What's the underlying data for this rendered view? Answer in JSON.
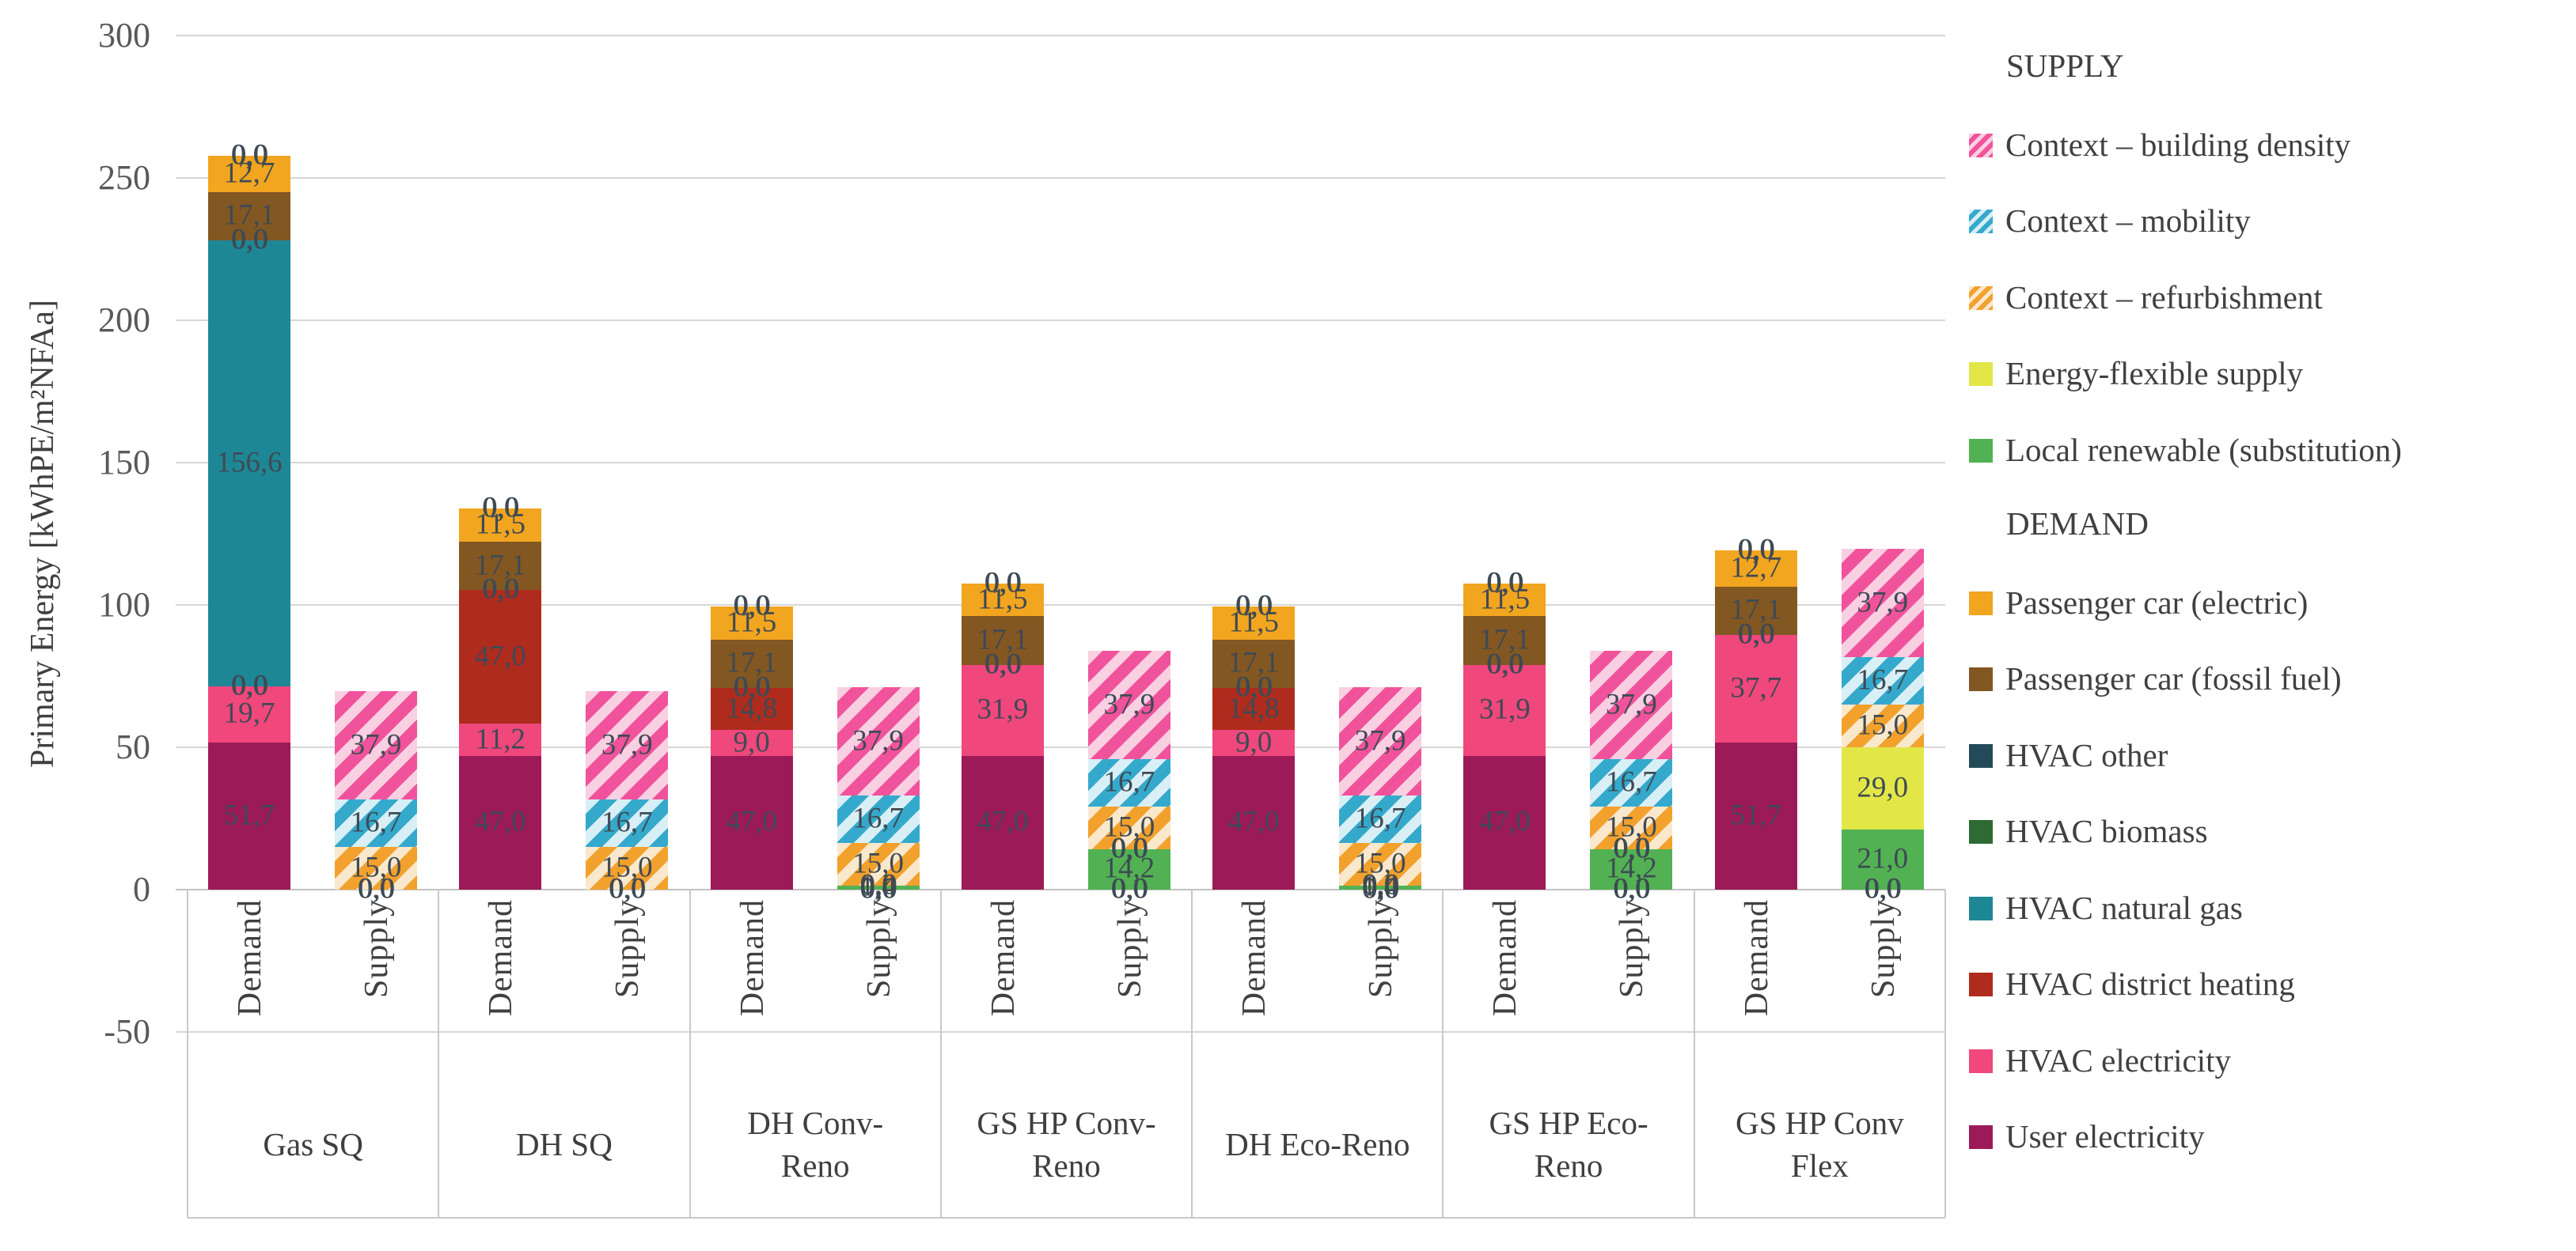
{
  "chart_data": {
    "type": "bar",
    "variant": "grouped-stacked-columns",
    "title": "",
    "ylabel": "Primary Energy [kWhPE/m²NFAa]",
    "y_ticks": [
      300,
      250,
      200,
      150,
      100,
      50,
      0,
      -50
    ],
    "ylim": [
      -50,
      300
    ],
    "grid": true,
    "decimal_separator": ",",
    "column_sublabels": [
      "Demand",
      "Supply"
    ],
    "groups": [
      {
        "label": "Gas SQ",
        "lines": [
          "Gas SQ"
        ]
      },
      {
        "label": "DH SQ",
        "lines": [
          "DH SQ"
        ]
      },
      {
        "label": "DH Conv-Reno",
        "lines": [
          "DH Conv-",
          "Reno"
        ]
      },
      {
        "label": "GS HP Conv-Reno",
        "lines": [
          "GS HP Conv-",
          "Reno"
        ]
      },
      {
        "label": "DH Eco-Reno",
        "lines": [
          "DH Eco-Reno"
        ]
      },
      {
        "label": "GS HP Eco-Reno",
        "lines": [
          "GS HP Eco-",
          "Reno"
        ]
      },
      {
        "label": "GS HP Conv Flex",
        "lines": [
          "GS HP Conv",
          "Flex"
        ]
      }
    ],
    "series": [
      {
        "key": "user_electricity",
        "label": "User electricity",
        "section": "DEMAND",
        "pattern": "solid",
        "color": "#9C1A57",
        "demand": [
          51.7,
          47.0,
          47.0,
          47.0,
          47.0,
          47.0,
          51.7
        ],
        "supply": [
          0,
          0,
          0,
          0,
          0,
          0,
          0
        ]
      },
      {
        "key": "hvac_electricity",
        "label": "HVAC electricity",
        "section": "DEMAND",
        "pattern": "solid",
        "color": "#F0477D",
        "demand": [
          19.7,
          11.2,
          9.0,
          31.9,
          9.0,
          31.9,
          37.7
        ],
        "supply": [
          0,
          0,
          0,
          0,
          0,
          0,
          0
        ]
      },
      {
        "key": "hvac_district_heating",
        "label": "HVAC district heating",
        "section": "DEMAND",
        "pattern": "solid",
        "color": "#AF2B1D",
        "demand": [
          0,
          47.0,
          14.8,
          0,
          14.8,
          0,
          0
        ],
        "supply": [
          0,
          0,
          0,
          0,
          0,
          0,
          0
        ]
      },
      {
        "key": "hvac_natural_gas",
        "label": "HVAC natural gas",
        "section": "DEMAND",
        "pattern": "solid",
        "color": "#1E8796",
        "demand": [
          156.6,
          0,
          0,
          0,
          0,
          0,
          0
        ],
        "supply": [
          0,
          0,
          0,
          0,
          0,
          0,
          0
        ]
      },
      {
        "key": "hvac_biomass",
        "label": "HVAC biomass",
        "section": "DEMAND",
        "pattern": "solid",
        "color": "#2E6B34",
        "demand": [
          0,
          0,
          0,
          0,
          0,
          0,
          0
        ],
        "supply": [
          0,
          0,
          0,
          0,
          0,
          0,
          0
        ]
      },
      {
        "key": "hvac_other",
        "label": "HVAC other",
        "section": "DEMAND",
        "pattern": "solid",
        "color": "#244A5A",
        "demand": [
          0,
          0,
          0,
          0,
          0,
          0,
          0
        ],
        "supply": [
          0,
          0,
          0,
          0,
          0,
          0,
          0
        ]
      },
      {
        "key": "car_fossil",
        "label": "Passenger car (fossil fuel)",
        "section": "DEMAND",
        "pattern": "solid",
        "color": "#835722",
        "demand": [
          17.1,
          17.1,
          17.1,
          17.1,
          17.1,
          17.1,
          17.1
        ],
        "supply": [
          0,
          0,
          0,
          0,
          0,
          0,
          0
        ]
      },
      {
        "key": "car_electric",
        "label": "Passenger car (electric)",
        "section": "DEMAND",
        "pattern": "solid",
        "color": "#F2A51F",
        "demand": [
          12.7,
          11.5,
          11.5,
          11.5,
          11.5,
          11.5,
          12.7
        ],
        "supply": [
          0,
          0,
          0,
          0,
          0,
          0,
          0
        ]
      },
      {
        "key": "local_renewable",
        "label": "Local renewable (substitution)",
        "section": "SUPPLY",
        "pattern": "solid",
        "color": "#52B253",
        "demand": [
          0,
          0,
          0,
          0,
          0,
          0,
          0
        ],
        "supply": [
          0,
          0,
          1.4,
          14.2,
          1.4,
          14.2,
          21.0
        ]
      },
      {
        "key": "energy_flexible",
        "label": "Energy-flexible supply",
        "section": "SUPPLY",
        "pattern": "solid",
        "color": "#E2E747",
        "demand": [
          0,
          0,
          0,
          0,
          0,
          0,
          0
        ],
        "supply": [
          0,
          0,
          0,
          0,
          0,
          0,
          29.0
        ]
      },
      {
        "key": "context_refurbishment",
        "label": "Context – refurbishment",
        "section": "SUPPLY",
        "pattern": "hatch",
        "color": "#F2A12D",
        "hatch_bg": "#FAE8CC",
        "demand": [
          0,
          0,
          0,
          0,
          0,
          0,
          0
        ],
        "supply": [
          15.0,
          15.0,
          15.0,
          15.0,
          15.0,
          15.0,
          15.0
        ]
      },
      {
        "key": "context_mobility",
        "label": "Context – mobility",
        "section": "SUPPLY",
        "pattern": "hatch",
        "color": "#35A9CC",
        "hatch_bg": "#D9EFF6",
        "demand": [
          0,
          0,
          0,
          0,
          0,
          0,
          0
        ],
        "supply": [
          16.7,
          16.7,
          16.7,
          16.7,
          16.7,
          16.7,
          16.7
        ]
      },
      {
        "key": "context_building_density",
        "label": "Context – building density",
        "section": "SUPPLY",
        "pattern": "hatch",
        "color": "#F0539B",
        "hatch_bg": "#F8D0E2",
        "demand": [
          0,
          0,
          0,
          0,
          0,
          0,
          0
        ],
        "supply": [
          37.9,
          37.9,
          37.9,
          37.9,
          37.9,
          37.9,
          37.9
        ]
      }
    ],
    "legend": {
      "position": "right",
      "supply_header": "SUPPLY",
      "demand_header": "DEMAND",
      "supply_item_keys": [
        "context_building_density",
        "context_mobility",
        "context_refurbishment",
        "energy_flexible",
        "local_renewable"
      ],
      "demand_item_keys": [
        "car_electric",
        "car_fossil",
        "hvac_other",
        "hvac_biomass",
        "hvac_natural_gas",
        "hvac_district_heating",
        "hvac_electricity",
        "user_electricity"
      ]
    }
  }
}
